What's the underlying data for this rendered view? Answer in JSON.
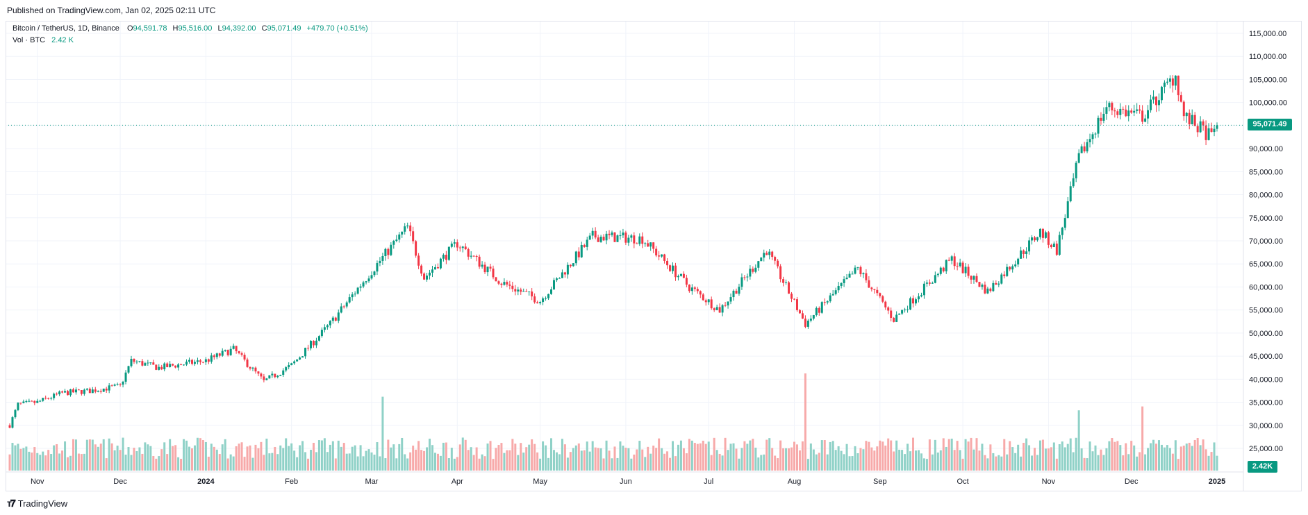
{
  "header": {
    "published": "Published on TradingView.com, Jan 02, 2025 02:11 UTC"
  },
  "legend": {
    "symbol": "Bitcoin / TetherUS, 1D, Binance",
    "open_label": "O",
    "open": "94,591.78",
    "high_label": "H",
    "high": "95,516.00",
    "low_label": "L",
    "low": "94,392.00",
    "close_label": "C",
    "close": "95,071.49",
    "change": "+479.70 (+0.51%)",
    "vol_label": "Vol · BTC",
    "vol_value": "2.42 K"
  },
  "price_tag": "95,071.49",
  "vol_tag": "2.42K",
  "footer": {
    "brand": "TradingView",
    "logo_icon": "tradingview-logo-icon"
  },
  "colors": {
    "up": "#089981",
    "down": "#f23645",
    "up_vol": "#8fd1c7",
    "down_vol": "#f7a9a9",
    "grid": "#f0f3fa"
  },
  "chart_data": {
    "type": "candlestick",
    "symbol": "BTC/USDT",
    "interval": "1D",
    "exchange": "Binance",
    "y_axis_ticks": [
      "115,000.00",
      "110,000.00",
      "105,000.00",
      "100,000.00",
      "95,000.00",
      "90,000.00",
      "85,000.00",
      "80,000.00",
      "75,000.00",
      "70,000.00",
      "65,000.00",
      "60,000.00",
      "55,000.00",
      "50,000.00",
      "45,000.00",
      "40,000.00",
      "35,000.00",
      "30,000.00",
      "25,000.00"
    ],
    "ylim": [
      23000,
      118000
    ],
    "x_axis_labels": [
      "Nov",
      "Dec",
      "2024",
      "Feb",
      "Mar",
      "Apr",
      "May",
      "Jun",
      "Jul",
      "Aug",
      "Sep",
      "Oct",
      "Nov",
      "Dec",
      "2025"
    ],
    "bold_x_labels": [
      "2024",
      "2025"
    ],
    "grid": true,
    "last_price": 95071.49,
    "approx_close_path": [
      {
        "date": "2023-10-22",
        "close": 30000
      },
      {
        "date": "2023-10-25",
        "close": 34500
      },
      {
        "date": "2023-11-01",
        "close": 35000
      },
      {
        "date": "2023-11-10",
        "close": 37000
      },
      {
        "date": "2023-11-20",
        "close": 37500
      },
      {
        "date": "2023-12-01",
        "close": 38500
      },
      {
        "date": "2023-12-05",
        "close": 44000
      },
      {
        "date": "2023-12-15",
        "close": 42500
      },
      {
        "date": "2024-01-01",
        "close": 44000
      },
      {
        "date": "2024-01-11",
        "close": 46500
      },
      {
        "date": "2024-01-22",
        "close": 39500
      },
      {
        "date": "2024-02-01",
        "close": 43000
      },
      {
        "date": "2024-02-15",
        "close": 52000
      },
      {
        "date": "2024-02-28",
        "close": 62000
      },
      {
        "date": "2024-03-14",
        "close": 73000
      },
      {
        "date": "2024-03-20",
        "close": 62000
      },
      {
        "date": "2024-04-01",
        "close": 69500
      },
      {
        "date": "2024-04-17",
        "close": 61000
      },
      {
        "date": "2024-05-01",
        "close": 57000
      },
      {
        "date": "2024-05-20",
        "close": 71000
      },
      {
        "date": "2024-06-07",
        "close": 70500
      },
      {
        "date": "2024-06-24",
        "close": 60000
      },
      {
        "date": "2024-07-05",
        "close": 55000
      },
      {
        "date": "2024-07-22",
        "close": 68000
      },
      {
        "date": "2024-08-05",
        "close": 52000
      },
      {
        "date": "2024-08-24",
        "close": 64000
      },
      {
        "date": "2024-09-06",
        "close": 53000
      },
      {
        "date": "2024-09-27",
        "close": 66000
      },
      {
        "date": "2024-10-10",
        "close": 59000
      },
      {
        "date": "2024-10-29",
        "close": 72000
      },
      {
        "date": "2024-11-04",
        "close": 68000
      },
      {
        "date": "2024-11-12",
        "close": 88000
      },
      {
        "date": "2024-11-22",
        "close": 99000
      },
      {
        "date": "2024-12-05",
        "close": 97000
      },
      {
        "date": "2024-12-17",
        "close": 106000
      },
      {
        "date": "2024-12-20",
        "close": 97000
      },
      {
        "date": "2024-12-30",
        "close": 92500
      },
      {
        "date": "2025-01-01",
        "close": 95071.49
      }
    ],
    "volume_spikes": [
      {
        "date": "2024-03-05",
        "relative": 0.76
      },
      {
        "date": "2024-08-05",
        "relative": 1.0
      },
      {
        "date": "2024-11-12",
        "relative": 0.62
      },
      {
        "date": "2024-12-05",
        "relative": 0.66
      }
    ]
  }
}
